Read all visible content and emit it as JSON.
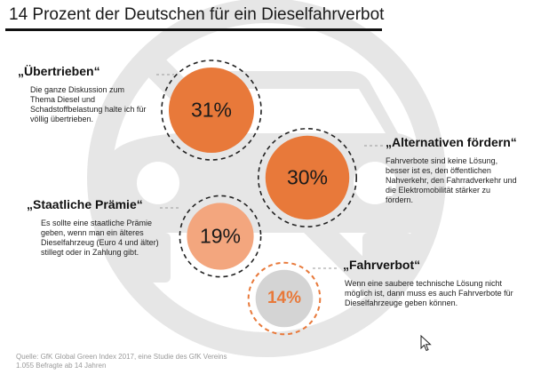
{
  "title": "14 Prozent der Deutschen für ein Dieselfahrverbot",
  "colors": {
    "accent": "#e8793a",
    "accent_mid": "#ec8a55",
    "accent_light": "#f3a67e",
    "gray_bubble": "#d4d4d4",
    "background_graphic": "#e6e6e6"
  },
  "icons": {
    "background": "car-with-prohibition-sign-icon",
    "cursor": "mouse-cursor-icon"
  },
  "items": [
    {
      "heading": "„Übertrieben“",
      "text": "Die ganze Diskussion zum Thema Diesel und Schadstoffbelastung halte ich für völlig übertrieben.",
      "value_label": "31%"
    },
    {
      "heading": "„Alternativen fördern“",
      "text": "Fahrverbote sind keine Lösung, besser ist es, den öffentlichen Nahverkehr, den Fahrradverkehr und die Elektromobilität stärker zu fördern.",
      "value_label": "30%"
    },
    {
      "heading": "„Staatliche Prämie“",
      "text": "Es sollte eine staatliche Prämie geben, wenn man ein älteres Dieselfahrzeug (Euro 4 und älter) stillegt oder in Zahlung gibt.",
      "value_label": "19%"
    },
    {
      "heading": "„Fahrverbot“",
      "text": "Wenn eine saubere technische Lösung nicht möglich ist, dann muss es auch Fahrverbote für Dieselfahrzeuge geben können.",
      "value_label": "14%"
    }
  ],
  "source": {
    "line1": "Quelle: GfK Global Green Index 2017, eine Studie des GfK Vereins",
    "line2": "1.055 Befragte ab 14 Jahren"
  },
  "chart_data": {
    "type": "bubble",
    "title": "14 Prozent der Deutschen für ein Dieselfahrverbot",
    "unit": "%",
    "categories": [
      "„Übertrieben“",
      "„Alternativen fördern“",
      "„Staatliche Prämie“",
      "„Fahrverbot“"
    ],
    "values": [
      31,
      30,
      19,
      14
    ],
    "colors": [
      "#e8793a",
      "#e8793a",
      "#f3a67e",
      "#d4d4d4"
    ]
  }
}
